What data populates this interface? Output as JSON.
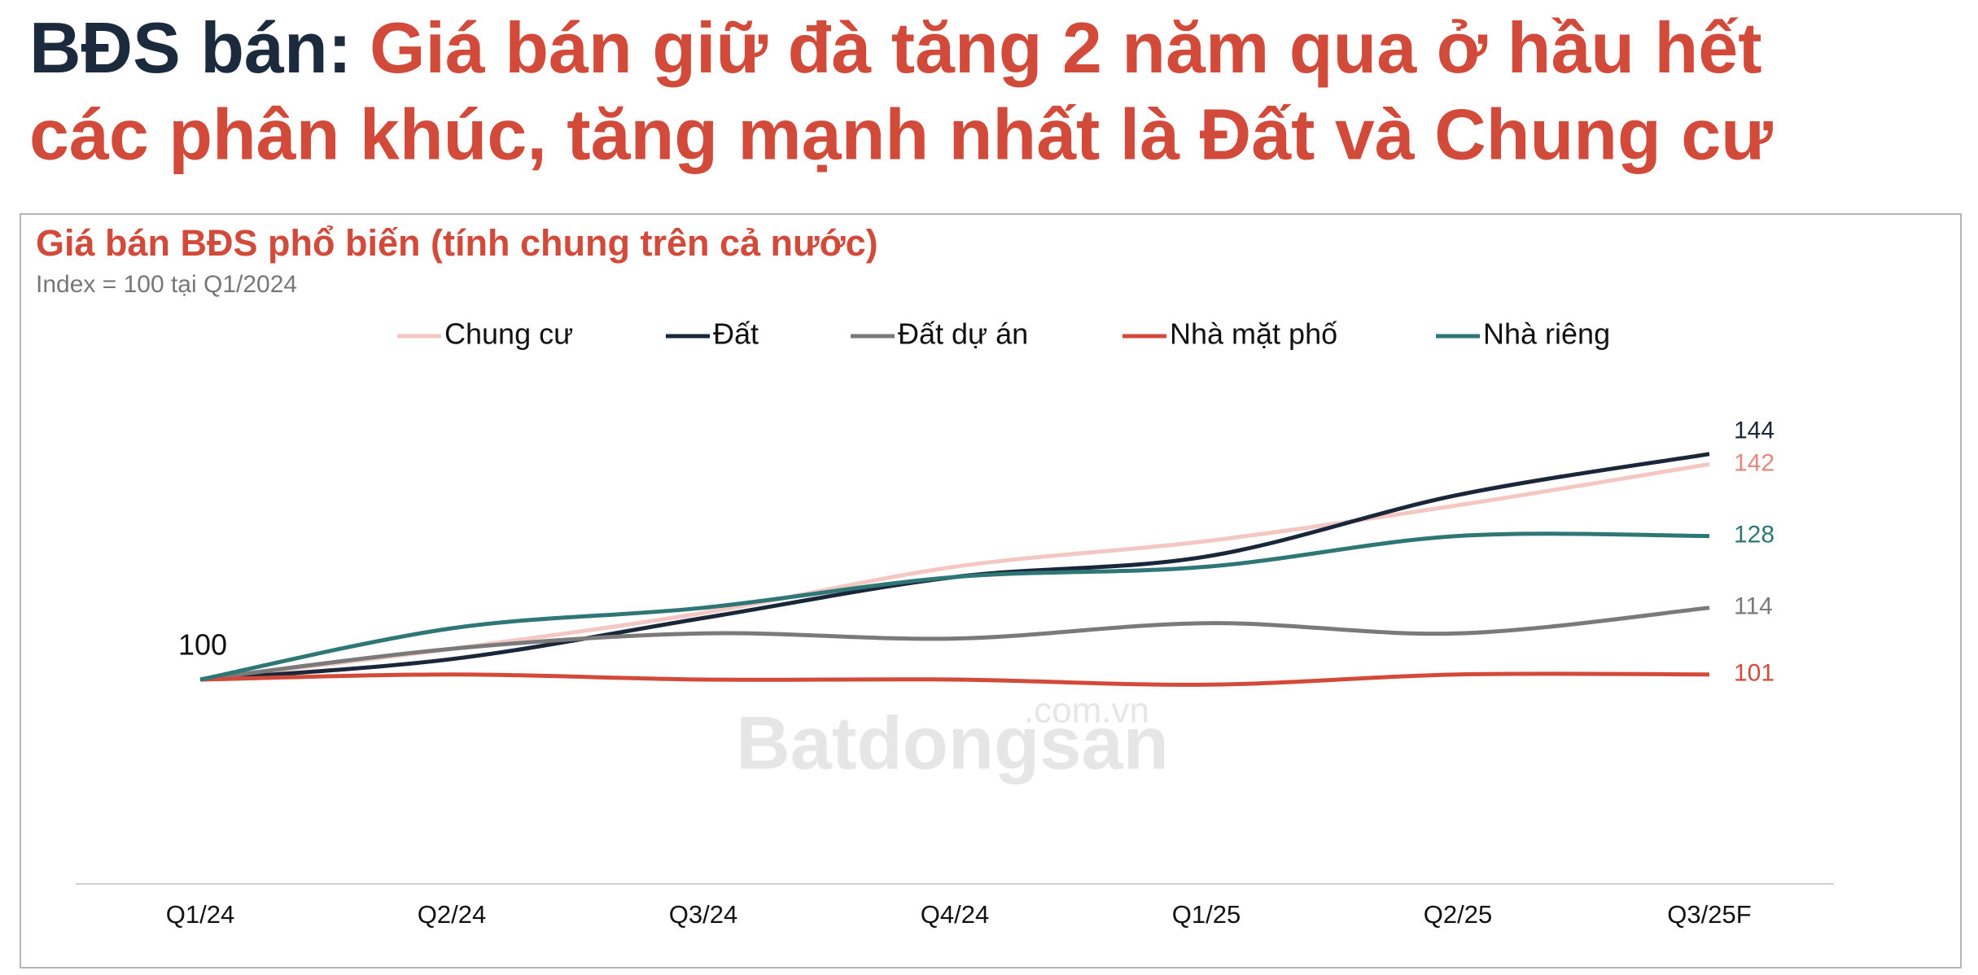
{
  "heading": {
    "lead": "BĐS bán:",
    "line1": "Giá bán giữ đà tăng 2 năm qua ở hầu hết",
    "line2": "các phân khúc, tăng mạnh nhất là Đất và Chung cư"
  },
  "watermark": {
    "brand": "Batdongsan",
    "domain": ".com.vn"
  },
  "chart_data": {
    "type": "line",
    "title": "Giá bán BĐS phổ biến (tính chung trên cả nước)",
    "subtitle": "Index = 100 tại Q1/2024",
    "categories": [
      "Q1/24",
      "Q2/24",
      "Q3/24",
      "Q4/24",
      "Q1/25",
      "Q2/25",
      "Q3/25F"
    ],
    "ylim": [
      60,
      160
    ],
    "smooth": true,
    "series": [
      {
        "name": "Chung cư",
        "color": "#f4c7c3",
        "label_color": "#e8877e",
        "values": [
          100,
          106,
          113,
          122,
          127,
          134,
          142
        ]
      },
      {
        "name": "Đất",
        "color": "#1a2639",
        "label_color": "#1a2639",
        "values": [
          100,
          104,
          112,
          120,
          124,
          136,
          144
        ]
      },
      {
        "name": "Đất dự án",
        "color": "#7a7a7a",
        "label_color": "#7a7a7a",
        "values": [
          100,
          106,
          109,
          108,
          111,
          109,
          114
        ]
      },
      {
        "name": "Nhà mặt phố",
        "color": "#d44a3a",
        "label_color": "#d44a3a",
        "values": [
          100,
          101,
          100,
          100,
          99,
          101,
          101
        ]
      },
      {
        "name": "Nhà riêng",
        "color": "#2e7776",
        "label_color": "#2e7776",
        "values": [
          100,
          110,
          114,
          120,
          122,
          128,
          128
        ]
      }
    ]
  }
}
